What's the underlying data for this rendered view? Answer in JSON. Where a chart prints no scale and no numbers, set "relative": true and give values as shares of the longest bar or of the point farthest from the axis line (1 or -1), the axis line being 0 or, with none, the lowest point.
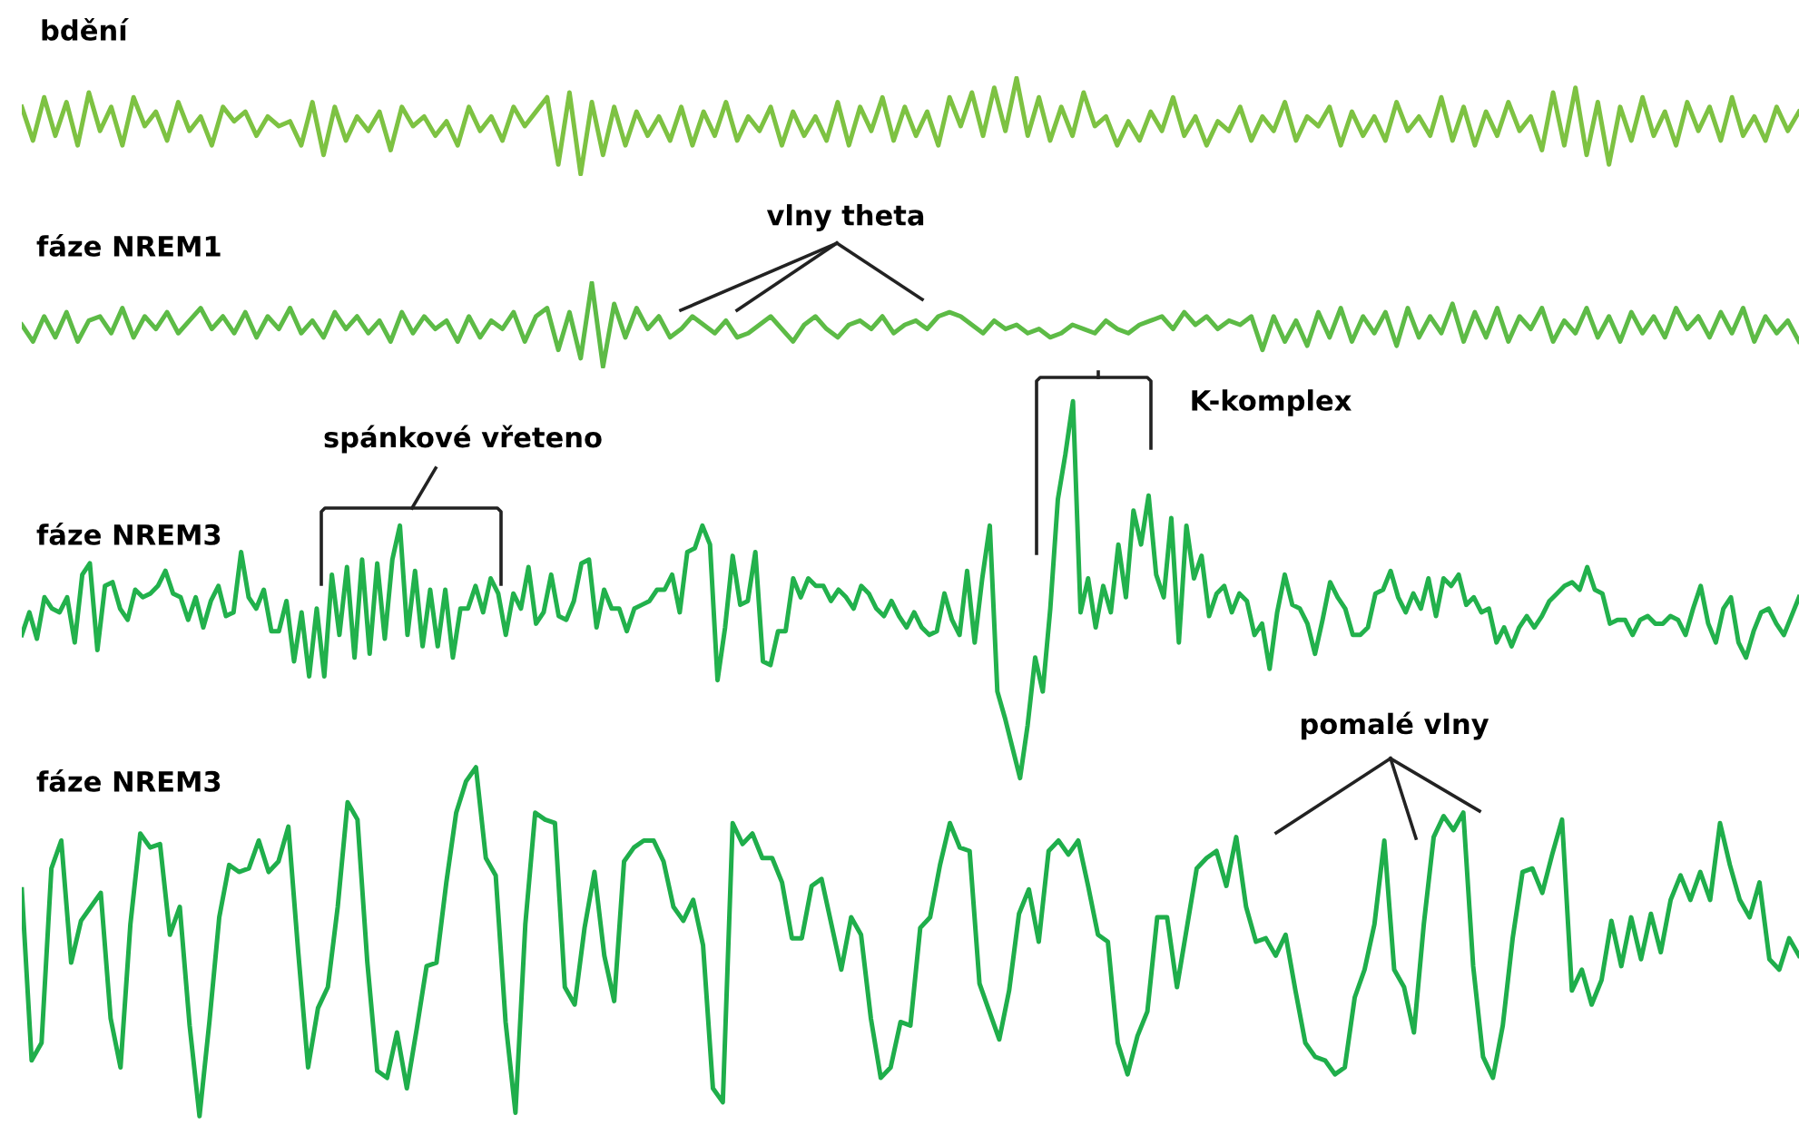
{
  "chart_data": [
    {
      "type": "line",
      "relative": true,
      "title": "bdění",
      "color": "#7dc242",
      "marker": "none",
      "line_style": "solid",
      "categories": [
        null,
        null,
        null,
        null,
        null,
        null,
        null,
        null,
        null,
        null,
        null,
        null,
        null,
        null,
        null,
        null,
        null,
        null,
        null,
        null,
        null,
        null,
        null,
        null,
        null,
        null,
        null,
        null,
        null,
        null,
        null,
        null,
        null,
        null,
        null,
        null,
        null,
        null,
        null,
        null,
        null,
        null,
        null,
        null,
        null,
        null,
        null,
        null,
        null,
        null,
        null,
        null,
        null,
        null,
        null,
        null,
        null,
        null,
        null,
        null,
        null,
        null,
        null,
        null,
        null,
        null,
        null,
        null,
        null,
        null,
        null,
        null,
        null,
        null,
        null,
        null,
        null,
        null,
        null,
        null,
        null,
        null,
        null,
        null,
        null,
        null,
        null,
        null,
        null,
        null,
        null,
        null,
        null,
        null,
        null,
        null,
        null,
        null,
        null,
        null,
        null,
        null,
        null,
        null,
        null,
        null,
        null,
        null,
        null,
        null,
        null,
        null,
        null,
        null,
        null,
        null,
        null,
        null,
        null,
        null,
        null,
        null,
        null,
        null,
        null,
        null,
        null,
        null,
        null,
        null,
        null,
        null,
        null,
        null,
        null,
        null,
        null,
        null,
        null,
        null,
        null,
        null,
        null,
        null,
        null,
        null,
        null,
        null,
        null,
        null,
        null,
        null,
        null,
        null,
        null,
        null,
        null,
        null,
        null,
        null
      ],
      "values": [
        0.7,
        0.35,
        0.8,
        0.4,
        0.75,
        0.3,
        0.85,
        0.45,
        0.7,
        0.3,
        0.8,
        0.5,
        0.65,
        0.35,
        0.75,
        0.45,
        0.6,
        0.3,
        0.7,
        0.55,
        0.65,
        0.4,
        0.6,
        0.5,
        0.55,
        0.3,
        0.75,
        0.2,
        0.7,
        0.35,
        0.6,
        0.45,
        0.65,
        0.25,
        0.7,
        0.5,
        0.6,
        0.4,
        0.55,
        0.3,
        0.7,
        0.45,
        0.6,
        0.35,
        0.7,
        0.5,
        0.65,
        0.8,
        0.1,
        0.85,
        0.0,
        0.75,
        0.2,
        0.7,
        0.3,
        0.65,
        0.4,
        0.6,
        0.35,
        0.7,
        0.3,
        0.65,
        0.4,
        0.75,
        0.35,
        0.6,
        0.45,
        0.7,
        0.3,
        0.65,
        0.4,
        0.6,
        0.35,
        0.75,
        0.3,
        0.7,
        0.45,
        0.8,
        0.35,
        0.7,
        0.4,
        0.65,
        0.3,
        0.8,
        0.5,
        0.85,
        0.4,
        0.9,
        0.45,
        1.0,
        0.4,
        0.8,
        0.35,
        0.7,
        0.4,
        0.85,
        0.5,
        0.6,
        0.3,
        0.55,
        0.35,
        0.65,
        0.45,
        0.8,
        0.4,
        0.6,
        0.3,
        0.55,
        0.45,
        0.7,
        0.35,
        0.6,
        0.45,
        0.75,
        0.35,
        0.6,
        0.5,
        0.7,
        0.3,
        0.65,
        0.4,
        0.6,
        0.35,
        0.75,
        0.45,
        0.6,
        0.4,
        0.8,
        0.35,
        0.7,
        0.3,
        0.65,
        0.4,
        0.75,
        0.45,
        0.6,
        0.25,
        0.85,
        0.3,
        0.9,
        0.2,
        0.75,
        0.1,
        0.7,
        0.35,
        0.8,
        0.4,
        0.65,
        0.3,
        0.75,
        0.45,
        0.7,
        0.35,
        0.8,
        0.4,
        0.6,
        0.35,
        0.7,
        0.45,
        0.65
      ]
    },
    {
      "type": "line",
      "relative": true,
      "title": "fáze NREM1",
      "color": "#5dbb46",
      "marker": "none",
      "line_style": "solid",
      "annotations": [
        "vlny theta"
      ],
      "categories": [
        null,
        null,
        null,
        null,
        null,
        null,
        null,
        null,
        null,
        null,
        null,
        null,
        null,
        null,
        null,
        null,
        null,
        null,
        null,
        null,
        null,
        null,
        null,
        null,
        null,
        null,
        null,
        null,
        null,
        null,
        null,
        null,
        null,
        null,
        null,
        null,
        null,
        null,
        null,
        null,
        null,
        null,
        null,
        null,
        null,
        null,
        null,
        null,
        null,
        null,
        null,
        null,
        null,
        null,
        null,
        null,
        null,
        null,
        null,
        null,
        null,
        null,
        null,
        null,
        null,
        null,
        null,
        null,
        null,
        null,
        null,
        null,
        null,
        null,
        null,
        null,
        null,
        null,
        null,
        null,
        null,
        null,
        null,
        null,
        null,
        null,
        null,
        null,
        null,
        null,
        null,
        null,
        null,
        null,
        null,
        null,
        null,
        null,
        null,
        null,
        null,
        null,
        null,
        null,
        null,
        null,
        null,
        null,
        null,
        null,
        null,
        null,
        null,
        null,
        null,
        null,
        null,
        null,
        null,
        null,
        null,
        null,
        null,
        null,
        null,
        null,
        null,
        null,
        null,
        null,
        null,
        null,
        null,
        null,
        null,
        null,
        null,
        null,
        null,
        null,
        null,
        null,
        null,
        null,
        null,
        null,
        null,
        null,
        null,
        null,
        null,
        null,
        null,
        null,
        null,
        null,
        null,
        null,
        null,
        null
      ],
      "values": [
        0.5,
        0.3,
        0.6,
        0.35,
        0.65,
        0.3,
        0.55,
        0.6,
        0.4,
        0.7,
        0.35,
        0.6,
        0.45,
        0.65,
        0.4,
        0.55,
        0.7,
        0.45,
        0.6,
        0.4,
        0.65,
        0.35,
        0.6,
        0.45,
        0.7,
        0.4,
        0.55,
        0.35,
        0.65,
        0.45,
        0.6,
        0.4,
        0.55,
        0.3,
        0.65,
        0.4,
        0.6,
        0.45,
        0.55,
        0.3,
        0.6,
        0.35,
        0.55,
        0.45,
        0.65,
        0.3,
        0.6,
        0.7,
        0.2,
        0.65,
        0.1,
        1.0,
        0.0,
        0.75,
        0.35,
        0.7,
        0.45,
        0.6,
        0.35,
        0.45,
        0.6,
        0.5,
        0.4,
        0.55,
        0.35,
        0.4,
        0.5,
        0.6,
        0.45,
        0.3,
        0.5,
        0.6,
        0.45,
        0.35,
        0.5,
        0.55,
        0.45,
        0.6,
        0.4,
        0.5,
        0.55,
        0.45,
        0.6,
        0.65,
        0.6,
        0.5,
        0.4,
        0.55,
        0.45,
        0.5,
        0.4,
        0.45,
        0.35,
        0.4,
        0.5,
        0.45,
        0.4,
        0.55,
        0.45,
        0.4,
        0.5,
        0.55,
        0.6,
        0.45,
        0.65,
        0.5,
        0.6,
        0.45,
        0.55,
        0.5,
        0.6,
        0.2,
        0.6,
        0.3,
        0.55,
        0.25,
        0.65,
        0.35,
        0.7,
        0.3,
        0.6,
        0.4,
        0.65,
        0.25,
        0.7,
        0.35,
        0.6,
        0.4,
        0.75,
        0.3,
        0.65,
        0.35,
        0.7,
        0.3,
        0.6,
        0.45,
        0.7,
        0.3,
        0.55,
        0.4,
        0.7,
        0.35,
        0.6,
        0.3,
        0.65,
        0.4,
        0.6,
        0.35,
        0.7,
        0.45,
        0.6,
        0.35,
        0.65,
        0.4,
        0.7,
        0.3,
        0.6,
        0.4,
        0.55,
        0.3
      ]
    },
    {
      "type": "line",
      "relative": true,
      "title": "fáze NREM3",
      "color": "#22b14c",
      "marker": "none",
      "line_style": "solid",
      "annotations": [
        "spánkové vřeteno",
        "K-komplex"
      ],
      "categories": [
        null,
        null,
        null,
        null,
        null,
        null,
        null,
        null,
        null,
        null,
        null,
        null,
        null,
        null,
        null,
        null,
        null,
        null,
        null,
        null,
        null,
        null,
        null,
        null,
        null,
        null,
        null,
        null,
        null,
        null,
        null,
        null,
        null,
        null,
        null,
        null,
        null,
        null,
        null,
        null,
        null,
        null,
        null,
        null,
        null,
        null,
        null,
        null,
        null,
        null,
        null,
        null,
        null,
        null,
        null,
        null,
        null,
        null,
        null,
        null,
        null,
        null,
        null,
        null,
        null,
        null,
        null,
        null,
        null,
        null,
        null,
        null,
        null,
        null,
        null,
        null,
        null,
        null,
        null,
        null,
        null,
        null,
        null,
        null,
        null,
        null,
        null,
        null,
        null,
        null,
        null,
        null,
        null,
        null,
        null,
        null,
        null,
        null,
        null,
        null,
        null,
        null,
        null,
        null,
        null,
        null,
        null,
        null,
        null,
        null,
        null,
        null,
        null,
        null,
        null,
        null,
        null,
        null,
        null,
        null,
        null,
        null,
        null,
        null,
        null,
        null,
        null,
        null,
        null,
        null,
        null,
        null,
        null,
        null,
        null,
        null,
        null,
        null,
        null,
        null,
        null,
        null,
        null,
        null,
        null,
        null,
        null,
        null,
        null,
        null,
        null,
        null,
        null,
        null,
        null,
        null,
        null,
        null,
        null,
        null,
        null,
        null,
        null,
        null,
        null,
        null,
        null,
        null,
        null,
        null,
        null,
        null,
        null,
        null,
        null,
        null,
        null,
        null,
        null,
        null,
        null,
        null,
        null,
        null,
        null,
        null,
        null,
        null,
        null,
        null,
        null,
        null,
        null,
        null,
        null,
        null,
        null,
        null,
        null,
        null,
        null,
        null,
        null,
        null,
        null,
        null,
        null,
        null,
        null,
        null,
        null,
        null,
        null,
        null,
        null,
        null,
        null,
        null,
        null,
        null,
        null,
        null,
        null,
        null,
        null,
        null,
        null,
        null,
        null,
        null,
        null,
        null,
        null,
        null,
        null,
        null
      ],
      "values": [
        0.38,
        0.44,
        0.37,
        0.48,
        0.45,
        0.44,
        0.48,
        0.36,
        0.54,
        0.57,
        0.34,
        0.51,
        0.52,
        0.45,
        0.42,
        0.5,
        0.48,
        0.49,
        0.51,
        0.55,
        0.49,
        0.48,
        0.42,
        0.48,
        0.4,
        0.47,
        0.51,
        0.43,
        0.44,
        0.6,
        0.48,
        0.45,
        0.5,
        0.39,
        0.39,
        0.47,
        0.31,
        0.44,
        0.27,
        0.45,
        0.27,
        0.54,
        0.38,
        0.56,
        0.32,
        0.58,
        0.33,
        0.57,
        0.37,
        0.58,
        0.67,
        0.38,
        0.55,
        0.35,
        0.5,
        0.35,
        0.5,
        0.32,
        0.45,
        0.45,
        0.51,
        0.44,
        0.53,
        0.49,
        0.38,
        0.49,
        0.45,
        0.56,
        0.41,
        0.44,
        0.54,
        0.43,
        0.42,
        0.47,
        0.57,
        0.58,
        0.4,
        0.5,
        0.45,
        0.45,
        0.39,
        0.45,
        0.46,
        0.47,
        0.5,
        0.5,
        0.54,
        0.44,
        0.6,
        0.61,
        0.67,
        0.62,
        0.26,
        0.4,
        0.59,
        0.46,
        0.47,
        0.6,
        0.31,
        0.3,
        0.39,
        0.39,
        0.53,
        0.48,
        0.53,
        0.51,
        0.51,
        0.47,
        0.5,
        0.48,
        0.45,
        0.51,
        0.49,
        0.45,
        0.43,
        0.47,
        0.43,
        0.4,
        0.44,
        0.4,
        0.38,
        0.39,
        0.49,
        0.42,
        0.38,
        0.55,
        0.36,
        0.53,
        0.67,
        0.23,
        0.16,
        0.08,
        0,
        0.14,
        0.32,
        0.23,
        0.45,
        0.74,
        0.86,
        1,
        0.44,
        0.53,
        0.4,
        0.51,
        0.44,
        0.62,
        0.48,
        0.71,
        0.62,
        0.75,
        0.54,
        0.48,
        0.69,
        0.36,
        0.67,
        0.53,
        0.59,
        0.43,
        0.49,
        0.51,
        0.44,
        0.49,
        0.47,
        0.38,
        0.41,
        0.29,
        0.44,
        0.54,
        0.46,
        0.45,
        0.41,
        0.33,
        0.42,
        0.52,
        0.48,
        0.45,
        0.38,
        0.38,
        0.4,
        0.49,
        0.5,
        0.55,
        0.48,
        0.44,
        0.49,
        0.45,
        0.53,
        0.43,
        0.53,
        0.51,
        0.54,
        0.46,
        0.48,
        0.44,
        0.45,
        0.36,
        0.4,
        0.35,
        0.4,
        0.43,
        0.4,
        0.43,
        0.47,
        0.49,
        0.51,
        0.52,
        0.5,
        0.56,
        0.5,
        0.49,
        0.41,
        0.42,
        0.42,
        0.38,
        0.42,
        0.43,
        0.41,
        0.41,
        0.43,
        0.42,
        0.38,
        0.45,
        0.51,
        0.41,
        0.36,
        0.45,
        0.48,
        0.36,
        0.32,
        0.39,
        0.44,
        0.45,
        0.41,
        0.38,
        0.43,
        0.48
      ]
    },
    {
      "type": "line",
      "relative": true,
      "title": "fáze NREM3",
      "color": "#1fae4b",
      "marker": "none",
      "line_style": "solid",
      "annotations": [
        "pomalé vlny"
      ],
      "categories": [
        null,
        null,
        null,
        null,
        null,
        null,
        null,
        null,
        null,
        null,
        null,
        null,
        null,
        null,
        null,
        null,
        null,
        null,
        null,
        null,
        null,
        null,
        null,
        null,
        null,
        null,
        null,
        null,
        null,
        null,
        null,
        null,
        null,
        null,
        null,
        null,
        null,
        null,
        null,
        null,
        null,
        null,
        null,
        null,
        null,
        null,
        null,
        null,
        null,
        null,
        null,
        null,
        null,
        null,
        null,
        null,
        null,
        null,
        null,
        null,
        null,
        null,
        null,
        null,
        null,
        null,
        null,
        null,
        null,
        null,
        null,
        null,
        null,
        null,
        null,
        null,
        null,
        null,
        null,
        null,
        null,
        null,
        null,
        null,
        null,
        null,
        null,
        null,
        null,
        null,
        null,
        null,
        null,
        null,
        null,
        null,
        null,
        null,
        null,
        null,
        null,
        null,
        null,
        null,
        null,
        null,
        null,
        null,
        null,
        null,
        null,
        null,
        null,
        null,
        null,
        null,
        null,
        null,
        null,
        null,
        null,
        null,
        null,
        null,
        null,
        null,
        null,
        null,
        null,
        null,
        null,
        null,
        null,
        null,
        null,
        null,
        null,
        null,
        null,
        null,
        null,
        null,
        null,
        null,
        null,
        null,
        null,
        null,
        null,
        null,
        null,
        null,
        null,
        null,
        null,
        null,
        null,
        null,
        null,
        null,
        null,
        null,
        null,
        null,
        null,
        null,
        null,
        null,
        null,
        null,
        null,
        null,
        null,
        null,
        null,
        null,
        null,
        null,
        null,
        null,
        null
      ],
      "values": [
        0.65,
        0.16,
        0.21,
        0.71,
        0.79,
        0.44,
        0.56,
        0.6,
        0.64,
        0.28,
        0.14,
        0.55,
        0.81,
        0.77,
        0.78,
        0.52,
        0.6,
        0.26,
        0,
        0.27,
        0.57,
        0.72,
        0.7,
        0.71,
        0.79,
        0.7,
        0.73,
        0.83,
        0.47,
        0.14,
        0.31,
        0.37,
        0.6,
        0.9,
        0.85,
        0.44,
        0.13,
        0.11,
        0.24,
        0.08,
        0.25,
        0.43,
        0.44,
        0.67,
        0.87,
        0.96,
        1.0,
        0.74,
        0.69,
        0.27,
        0.01,
        0.55,
        0.87,
        0.85,
        0.84,
        0.37,
        0.32,
        0.54,
        0.7,
        0.46,
        0.33,
        0.73,
        0.77,
        0.79,
        0.79,
        0.73,
        0.6,
        0.56,
        0.62,
        0.49,
        0.08,
        0.04,
        0.84,
        0.78,
        0.81,
        0.74,
        0.74,
        0.67,
        0.51,
        0.51,
        0.66,
        0.68,
        0.55,
        0.42,
        0.57,
        0.52,
        0.28,
        0.11,
        0.14,
        0.27,
        0.26,
        0.54,
        0.57,
        0.72,
        0.84,
        0.77,
        0.76,
        0.38,
        0.3,
        0.22,
        0.36,
        0.58,
        0.65,
        0.5,
        0.76,
        0.79,
        0.75,
        0.79,
        0.66,
        0.52,
        0.5,
        0.21,
        0.12,
        0.23,
        0.3,
        0.57,
        0.57,
        0.37,
        0.54,
        0.71,
        0.74,
        0.76,
        0.66,
        0.8,
        0.6,
        0.5,
        0.51,
        0.46,
        0.52,
        0.36,
        0.21,
        0.17,
        0.16,
        0.12,
        0.14,
        0.34,
        0.42,
        0.55,
        0.79,
        0.42,
        0.37,
        0.24,
        0.55,
        0.8,
        0.86,
        0.82,
        0.87,
        0.43,
        0.17,
        0.11,
        0.26,
        0.51,
        0.7,
        0.71,
        0.64,
        0.75,
        0.85,
        0.36,
        0.42,
        0.32,
        0.39,
        0.56,
        0.43,
        0.57,
        0.45,
        0.58,
        0.47,
        0.62,
        0.69,
        0.62,
        0.7,
        0.62,
        0.84,
        0.72,
        0.62,
        0.57,
        0.67,
        0.45,
        0.42,
        0.51,
        0.46
      ]
    }
  ]
}
